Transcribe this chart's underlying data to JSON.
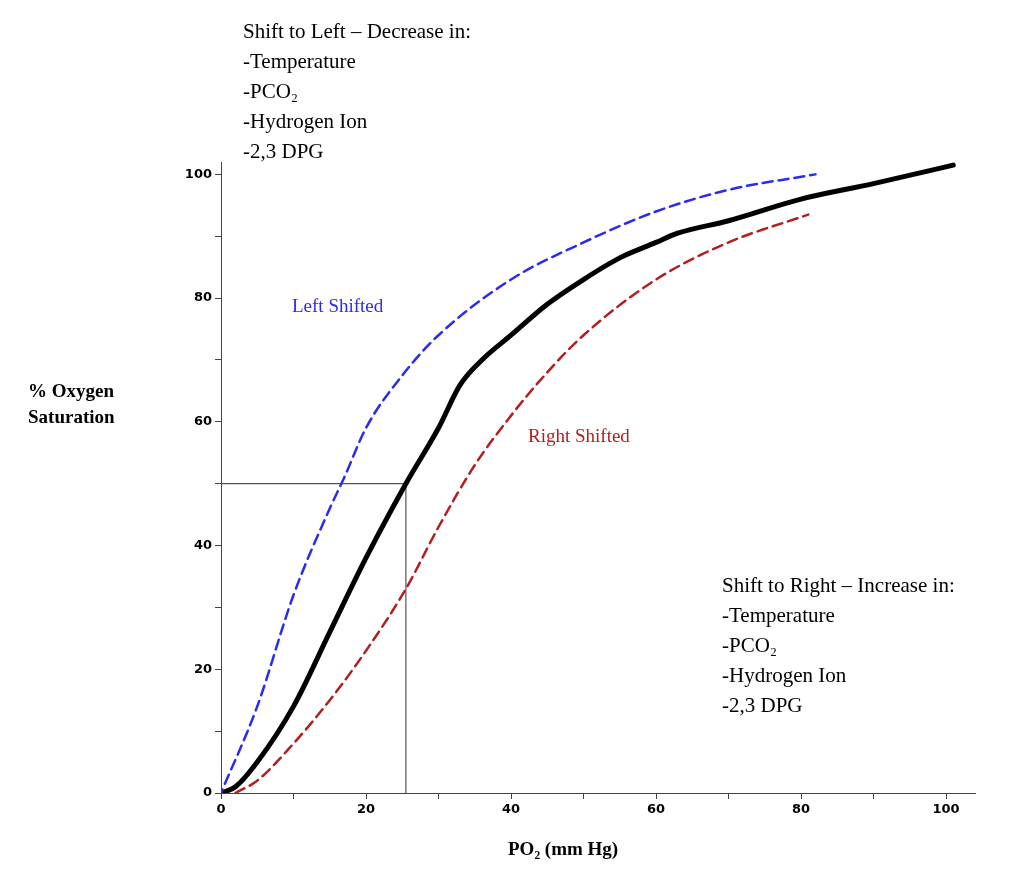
{
  "chart_data": {
    "type": "line",
    "xlabel": "PO₂ (mm Hg)",
    "ylabel": "% Oxygen\nSaturation",
    "xlim": [
      0,
      104
    ],
    "ylim": [
      0,
      102
    ],
    "xticks": [
      0,
      {
        "value": 10,
        "label": null
      },
      20,
      {
        "value": 30,
        "label": null
      },
      40,
      {
        "value": 50,
        "label": null
      },
      60,
      {
        "value": 70,
        "label": null
      },
      80,
      {
        "value": 90,
        "label": null
      },
      100
    ],
    "yticks": [
      0,
      {
        "value": 10,
        "label": null
      },
      20,
      {
        "value": 30,
        "label": null
      },
      40,
      {
        "value": 50,
        "label": null
      },
      60,
      {
        "value": 70,
        "label": null
      },
      80,
      {
        "value": 90,
        "label": null
      },
      100
    ],
    "grid": false,
    "marker": "none",
    "series": [
      {
        "color": "#2b2bef",
        "line_style": "dashed",
        "x": [
          0,
          5,
          10,
          15,
          17,
          20,
          25,
          30,
          40,
          50,
          60,
          70,
          82
        ],
        "values": [
          0,
          14,
          32,
          46,
          51,
          59,
          67.5,
          74,
          83,
          89,
          94,
          97.5,
          100
        ]
      },
      {
        "color": "#b02020",
        "line_style": "dashed",
        "x": [
          2,
          5,
          10,
          15,
          20,
          25.5,
          30,
          35,
          40,
          45,
          50,
          60,
          70,
          81
        ],
        "values": [
          0,
          2,
          8,
          15,
          23,
          33,
          43,
          53,
          61,
          68,
          74,
          83,
          89,
          93.5
        ]
      },
      {
        "color": "#000000",
        "line_style": "solid",
        "x": [
          0,
          2,
          5,
          10,
          15,
          20,
          25.5,
          30,
          33,
          36,
          40,
          45,
          50,
          55,
          60,
          63,
          70,
          80,
          90,
          101
        ],
        "values": [
          0,
          1,
          5,
          14,
          26,
          38,
          50,
          59,
          66,
          70,
          74,
          79,
          83,
          86.5,
          89,
          90.5,
          92.5,
          96,
          98.5,
          101.5
        ]
      },
      {
        "color": "#555555",
        "line_style": "solid",
        "x": [
          0,
          25.5,
          25.5
        ],
        "values": [
          50,
          50,
          0
        ]
      }
    ],
    "annotations": [
      "Left Shifted",
      "Right Shifted",
      "Shift to Left – Decrease in:\n-Temperature\n-PCO₂\n-Hydrogen Ion\n-2,3 DPG",
      "Shift to Right – Increase in:\n-Temperature\n-PCO₂\n-Hydrogen Ion\n-2,3 DPG"
    ]
  }
}
